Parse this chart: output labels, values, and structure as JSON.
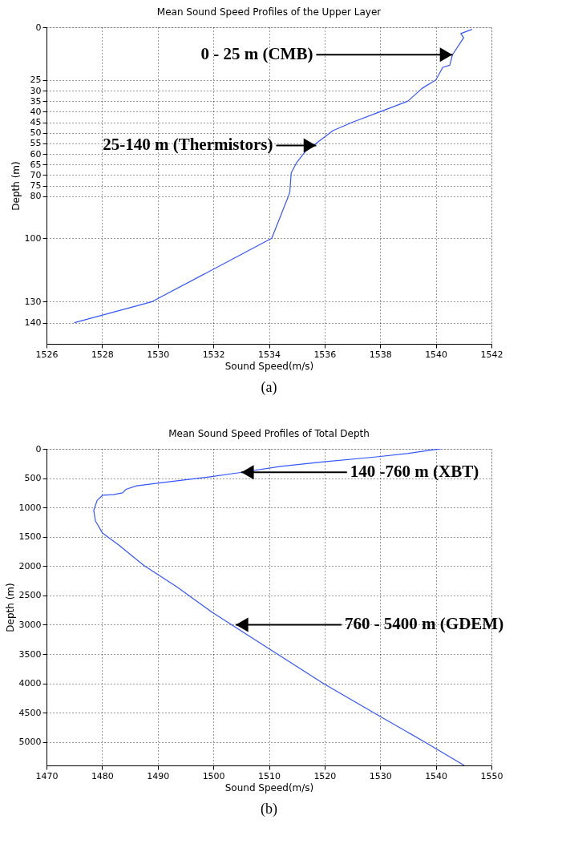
{
  "chart_data": [
    {
      "type": "line",
      "title": "Mean Sound Speed Profiles of the Upper Layer",
      "xlabel": "Sound Speed(m/s)",
      "ylabel": "Depth (m)",
      "xlim": [
        1526,
        1542
      ],
      "xticks": [
        1526,
        1528,
        1530,
        1532,
        1534,
        1536,
        1538,
        1540,
        1542
      ],
      "ylim": [
        150,
        0
      ],
      "yticks": [
        0,
        25,
        30,
        35,
        40,
        45,
        50,
        55,
        60,
        65,
        70,
        75,
        80,
        100,
        130,
        140
      ],
      "grid": true,
      "line_style": "solid",
      "marker": "none",
      "series": [
        {
          "color": "#3355ff",
          "x": [
            1541.3,
            1540.9,
            1541.0,
            1540.6,
            1540.5,
            1540.25,
            1540.0,
            1539.5,
            1539.0,
            1538.0,
            1537.0,
            1536.3,
            1535.7,
            1535.3,
            1535.0,
            1534.8,
            1534.75,
            1534.7,
            1534.1,
            1529.8,
            1527.0
          ],
          "values": [
            1,
            3,
            5,
            13,
            18,
            19,
            25,
            29,
            35,
            40,
            45,
            49,
            55,
            59,
            64,
            69,
            78,
            80,
            100,
            130,
            140
          ]
        }
      ],
      "annotations": [
        {
          "text": "0 - 25 m (CMB)",
          "x": 1540.6,
          "y": 13
        },
        {
          "text": "25-140 m (Thermistors)",
          "x": 1535.7,
          "y": 56
        },
        "(a)"
      ]
    },
    {
      "type": "line",
      "title": "Mean Sound Speed Profiles of Total Depth",
      "xlabel": "Sound Speed(m/s)",
      "ylabel": "Depth (m)",
      "xlim": [
        1470,
        1550
      ],
      "xticks": [
        1470,
        1480,
        1490,
        1500,
        1510,
        1520,
        1530,
        1540,
        1550
      ],
      "ylim": [
        5400,
        0
      ],
      "yticks": [
        0,
        500,
        1000,
        1500,
        2000,
        2500,
        3000,
        3500,
        4000,
        4500,
        5000
      ],
      "grid": true,
      "line_style": "solid",
      "marker": "none",
      "series": [
        {
          "color": "#3355ff",
          "x": [
            1540.9,
            1539.3,
            1534.8,
            1529.0,
            1519.9,
            1512.1,
            1504.4,
            1499.2,
            1491.4,
            1486.2,
            1484.3,
            1483.7,
            1482.0,
            1480.1,
            1479.1,
            1478.5,
            1478.8,
            1480.1,
            1483.0,
            1487.5,
            1493.4,
            1499.8,
            1510.2,
            1519.9,
            1529.9,
            1538.0,
            1545.1
          ],
          "values": [
            0,
            20,
            80,
            140,
            220,
            300,
            410,
            480,
            570,
            630,
            690,
            750,
            780,
            790,
            880,
            1050,
            1230,
            1440,
            1640,
            1990,
            2350,
            2790,
            3420,
            4010,
            4560,
            5000,
            5400
          ]
        }
      ],
      "annotations": [
        {
          "text": "140 -760 m (XBT)",
          "x": 1505,
          "y": 400
        },
        {
          "text": "760 - 5400 m (GDEM)",
          "x": 1504,
          "y": 3000
        },
        "(b)"
      ]
    }
  ]
}
